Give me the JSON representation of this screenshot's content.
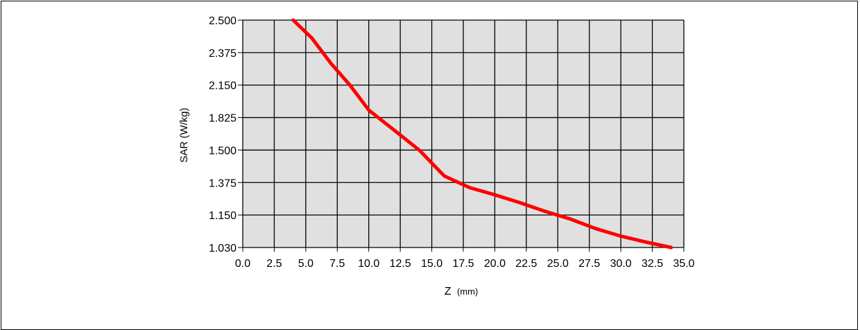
{
  "chart_data": {
    "type": "line",
    "title": "",
    "xlabel": "Z",
    "xlabel_unit": "(mm)",
    "ylabel": "SAR (W/kg)",
    "x_ticks": [
      "0.0",
      "2.5",
      "5.0",
      "7.5",
      "10.0",
      "12.5",
      "15.0",
      "17.5",
      "20.0",
      "22.5",
      "25.0",
      "27.5",
      "30.0",
      "32.5",
      "35.0"
    ],
    "y_ticks": [
      "2.500",
      "2.375",
      "2.150",
      "1.825",
      "1.500",
      "1.375",
      "1.150",
      "1.030"
    ],
    "xlim": [
      0,
      35
    ],
    "grid": true,
    "plot_background": "#e0e0e0",
    "grid_color": "#000000",
    "series": [
      {
        "color": "#ff0000",
        "x": [
          4.0,
          5.5,
          7.0,
          8.5,
          10.0,
          12.0,
          14.0,
          16.0,
          18.0,
          20.0,
          22.0,
          24.0,
          26.0,
          28.0,
          30.0,
          32.0,
          34.0
        ],
        "y": [
          2.5,
          2.43,
          2.3,
          2.15,
          1.9,
          1.7,
          1.5,
          1.4,
          1.34,
          1.29,
          1.235,
          1.175,
          1.135,
          1.1,
          1.072,
          1.05,
          1.03
        ]
      }
    ]
  }
}
